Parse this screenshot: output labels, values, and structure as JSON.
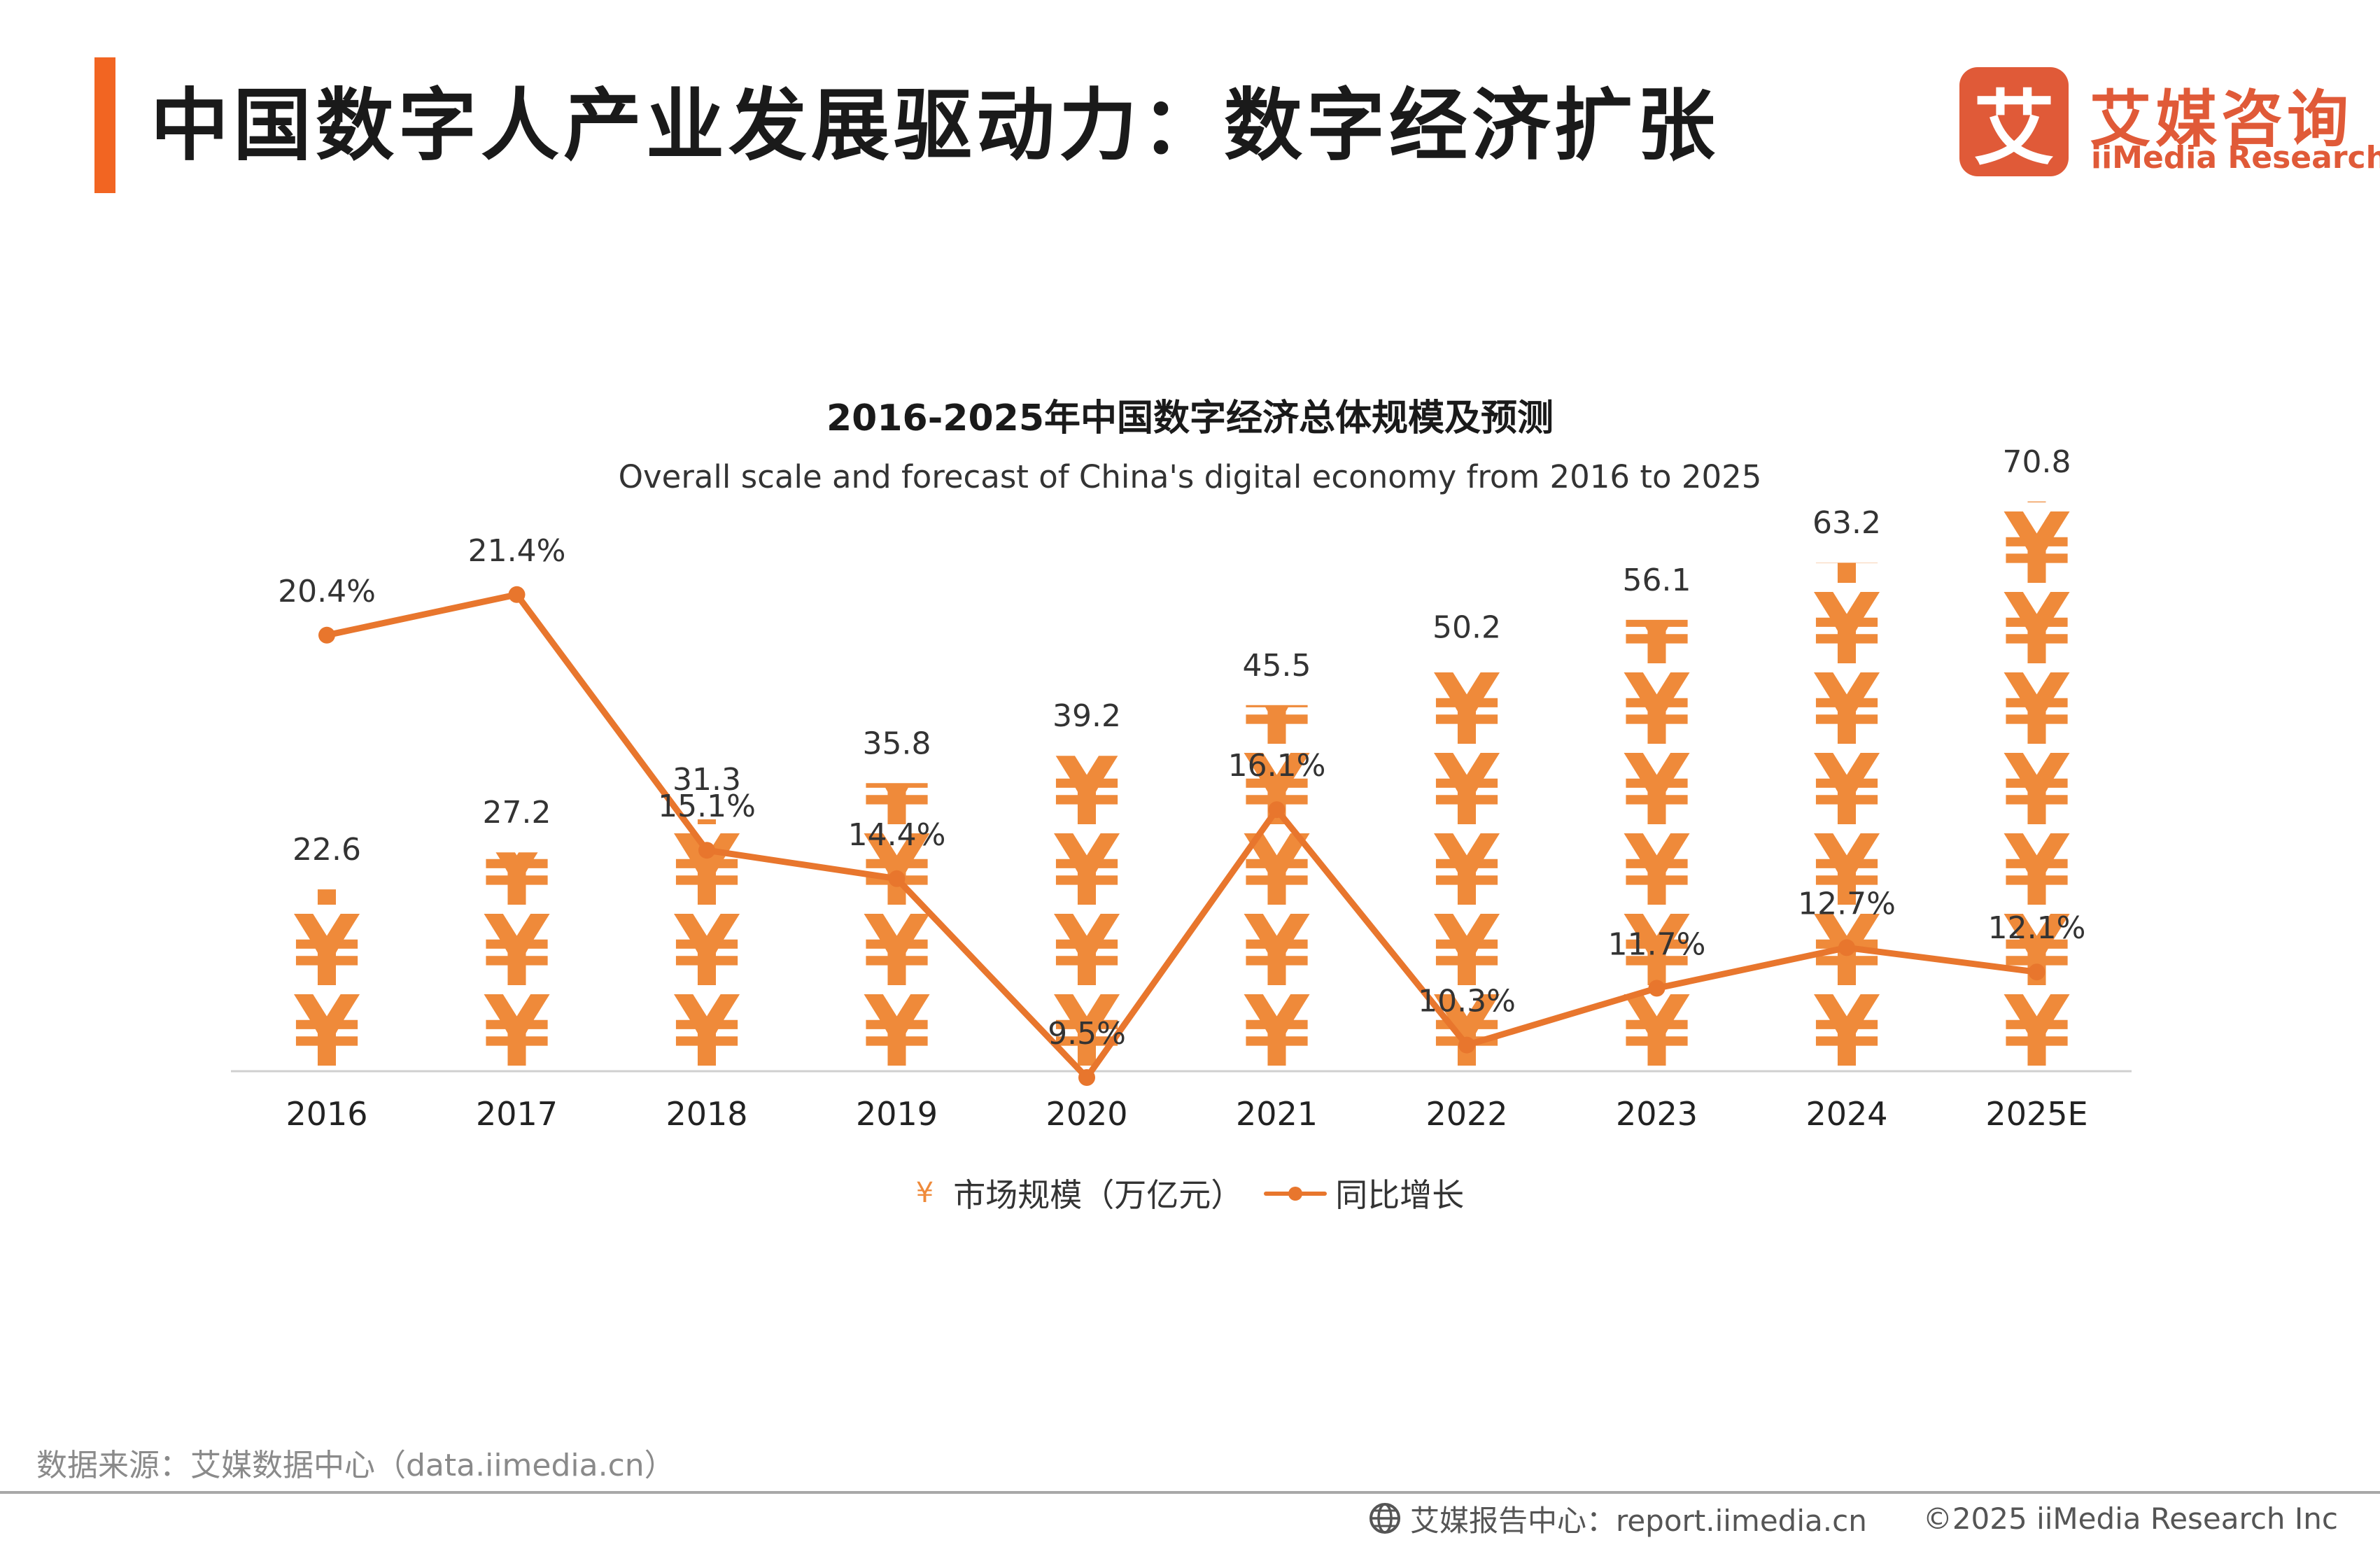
{
  "header": {
    "title": "中国数字人产业发展驱动力：数字经济扩张",
    "accent_color": "#f26522"
  },
  "logo": {
    "mark_text": "艾",
    "name_cn": "艾媒咨询",
    "name_en": "iiMedia Research",
    "color": "#e05a38"
  },
  "chart_data": {
    "type": "bar",
    "title": "2016-2025年中国数字经济总体规模及预测",
    "subtitle": "Overall scale and forecast of China's digital economy from 2016 to 2025",
    "categories": [
      "2016",
      "2017",
      "2018",
      "2019",
      "2020",
      "2021",
      "2022",
      "2023",
      "2024",
      "2025E"
    ],
    "series": [
      {
        "name": "市场规模（万亿元）",
        "type": "pictorial-bar",
        "symbol": "¥",
        "values": [
          22.6,
          27.2,
          31.3,
          35.8,
          39.2,
          45.5,
          50.2,
          56.1,
          63.2,
          70.8
        ],
        "labels": [
          "22.6",
          "27.2",
          "31.3",
          "35.8",
          "39.2",
          "45.5",
          "50.2",
          "56.1",
          "63.2",
          "70.8"
        ],
        "color": "#ef8a3a"
      },
      {
        "name": "同比增长",
        "type": "line",
        "values": [
          20.4,
          21.4,
          15.1,
          14.4,
          9.5,
          16.1,
          10.3,
          11.7,
          12.7,
          12.1
        ],
        "labels": [
          "20.4%",
          "21.4%",
          "15.1%",
          "14.4%",
          "9.5%",
          "16.1%",
          "10.3%",
          "11.7%",
          "12.7%",
          "12.1%"
        ],
        "color": "#e8762d"
      }
    ],
    "legend_position": "bottom",
    "grid": false
  },
  "legend": {
    "bar_symbol": "¥",
    "bar_label": "市场规模（万亿元）",
    "line_label": "同比增长"
  },
  "source": "数据来源：艾媒数据中心（data.iimedia.cn）",
  "footer": {
    "icon": "globe-icon",
    "report_center": "艾媒报告中心：report.iimedia.cn",
    "copyright": "©2025  iiMedia Research  Inc"
  }
}
